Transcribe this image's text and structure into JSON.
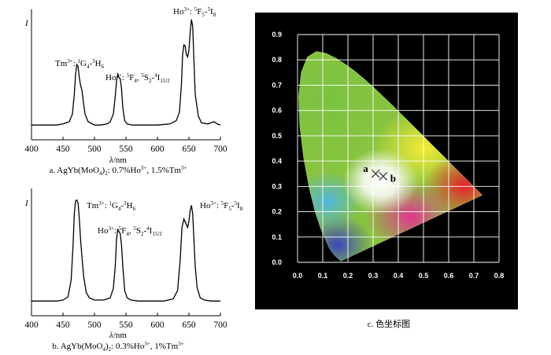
{
  "chart_data": [
    {
      "type": "line",
      "panel": "a",
      "caption_text": "a. AgYb(MoO",
      "caption_sub": "4",
      "caption_rest": ")",
      "caption_sub2": "2",
      "caption_tail": ": 0.7%Ho",
      "caption_sup1": "3+",
      "caption_mid": ", 1.5%Tm",
      "caption_sup2": "3+",
      "ylabel": "I",
      "xlabel_italic": "λ",
      "xlabel_unit": "/nm",
      "xlim": [
        400,
        700
      ],
      "x_ticks": [
        "400",
        "450",
        "500",
        "550",
        "600",
        "650",
        "700"
      ],
      "annotations": [
        {
          "ion": "Tm",
          "ion_sup": "3+",
          "sep": ": ",
          "l1_sup": "1",
          "l1": "G",
          "l1_sub": "4",
          "dash": "-",
          "l2_sup": "3",
          "l2": "H",
          "l2_sub": "6"
        },
        {
          "ion": "Ho",
          "ion_sup": "3+",
          "sep": ": ",
          "l1_sup": "5",
          "l1": "F",
          "l1_sub": "4",
          "comma": ", ",
          "l2_sup": "5",
          "l2": "S",
          "l2_sub": "2",
          "dash": "-",
          "l3_sup": "4",
          "l3": "I",
          "l3_sub": "15/2"
        },
        {
          "ion": "Ho",
          "ion_sup": "3+",
          "sep": ": ",
          "l1_sup": "5",
          "l1": "F",
          "l1_sub": "5",
          "dash": "-",
          "l2_sup": "5",
          "l2": "I",
          "l2_sub": "8"
        }
      ],
      "spectrum": {
        "x": [
          400,
          420,
          440,
          450,
          460,
          465,
          468,
          470,
          472,
          474,
          476,
          478,
          480,
          482,
          485,
          490,
          500,
          510,
          520,
          525,
          530,
          533,
          535,
          537,
          539,
          541,
          543,
          545,
          548,
          552,
          560,
          580,
          600,
          620,
          630,
          635,
          638,
          640,
          642,
          644,
          646,
          648,
          650,
          652,
          654,
          656,
          658,
          660,
          665,
          670,
          680,
          690,
          695,
          700
        ],
        "y": [
          0.02,
          0.02,
          0.02,
          0.03,
          0.05,
          0.12,
          0.3,
          0.48,
          0.57,
          0.55,
          0.45,
          0.38,
          0.34,
          0.25,
          0.12,
          0.05,
          0.02,
          0.02,
          0.03,
          0.05,
          0.12,
          0.28,
          0.42,
          0.48,
          0.45,
          0.44,
          0.35,
          0.18,
          0.06,
          0.03,
          0.02,
          0.02,
          0.02,
          0.03,
          0.06,
          0.14,
          0.38,
          0.66,
          0.75,
          0.74,
          0.66,
          0.64,
          0.7,
          0.86,
          0.98,
          0.92,
          0.6,
          0.3,
          0.1,
          0.04,
          0.03,
          0.05,
          0.03,
          0.02
        ]
      }
    },
    {
      "type": "line",
      "panel": "b",
      "caption_text": "b. AgYb(MoO",
      "caption_sub": "4",
      "caption_rest": ")",
      "caption_sub2": "2",
      "caption_tail": ": 0.3%Ho",
      "caption_sup1": "3+",
      "caption_mid": ", 1%Tm",
      "caption_sup2": "3+",
      "ylabel": "I",
      "xlabel_italic": "λ",
      "xlabel_unit": "/nm",
      "xlim": [
        400,
        700
      ],
      "x_ticks": [
        "400",
        "450",
        "500",
        "550",
        "600",
        "650",
        "700"
      ],
      "annotations": [
        {
          "ion": "Tm",
          "ion_sup": "3+",
          "sep": ": ",
          "l1_sup": "1",
          "l1": "G",
          "l1_sub": "4",
          "dash": "-",
          "l2_sup": "3",
          "l2": "H",
          "l2_sub": "6"
        },
        {
          "ion": "Ho",
          "ion_sup": "3+",
          "sep": ": ",
          "l1_sup": "5",
          "l1": "F",
          "l1_sub": "4",
          "comma": ", ",
          "l2_sup": "5",
          "l2": "S",
          "l2_sub": "2",
          "dash": "-",
          "l3_sup": "4",
          "l3": "I",
          "l3_sub": "15/2"
        },
        {
          "ion": "Ho",
          "ion_sup": "3+",
          "sep": ": ",
          "l1_sup": "5",
          "l1": "F",
          "l1_sub": "5",
          "dash": "-",
          "l2_sup": "5",
          "l2": "I",
          "l2_sub": "8"
        }
      ],
      "spectrum": {
        "x": [
          400,
          420,
          440,
          450,
          458,
          463,
          466,
          468,
          470,
          472,
          474,
          476,
          478,
          480,
          483,
          487,
          492,
          500,
          515,
          525,
          530,
          533,
          535,
          537,
          539,
          541,
          543,
          545,
          548,
          552,
          558,
          570,
          590,
          610,
          625,
          632,
          636,
          639,
          642,
          645,
          648,
          650,
          652,
          654,
          656,
          658,
          660,
          663,
          668,
          675,
          685,
          700
        ],
        "y": [
          0.02,
          0.02,
          0.02,
          0.03,
          0.06,
          0.22,
          0.55,
          0.85,
          0.97,
          0.98,
          0.95,
          0.8,
          0.6,
          0.45,
          0.25,
          0.1,
          0.05,
          0.03,
          0.03,
          0.05,
          0.14,
          0.35,
          0.6,
          0.7,
          0.68,
          0.66,
          0.55,
          0.35,
          0.12,
          0.05,
          0.03,
          0.02,
          0.02,
          0.02,
          0.04,
          0.12,
          0.4,
          0.72,
          0.8,
          0.76,
          0.72,
          0.78,
          0.88,
          0.93,
          0.85,
          0.6,
          0.35,
          0.15,
          0.05,
          0.03,
          0.02,
          0.02
        ]
      }
    },
    {
      "type": "scatter",
      "panel": "c",
      "caption_text": "c. 色坐标图",
      "xlim": [
        0.0,
        0.8
      ],
      "ylim": [
        0.0,
        0.9
      ],
      "grid": true,
      "x_ticks": [
        "0.0",
        "0.1",
        "0.2",
        "0.3",
        "0.4",
        "0.5",
        "0.6",
        "0.7",
        "0.8"
      ],
      "y_ticks": [
        "0.0",
        "0.1",
        "0.2",
        "0.3",
        "0.4",
        "0.5",
        "0.6",
        "0.7",
        "0.8",
        "0.9"
      ],
      "points": [
        {
          "label": "a",
          "x": 0.31,
          "y": 0.35
        },
        {
          "label": "b",
          "x": 0.34,
          "y": 0.34
        }
      ],
      "colors": {
        "background": "#000000",
        "grid": "#ffffff"
      }
    }
  ]
}
